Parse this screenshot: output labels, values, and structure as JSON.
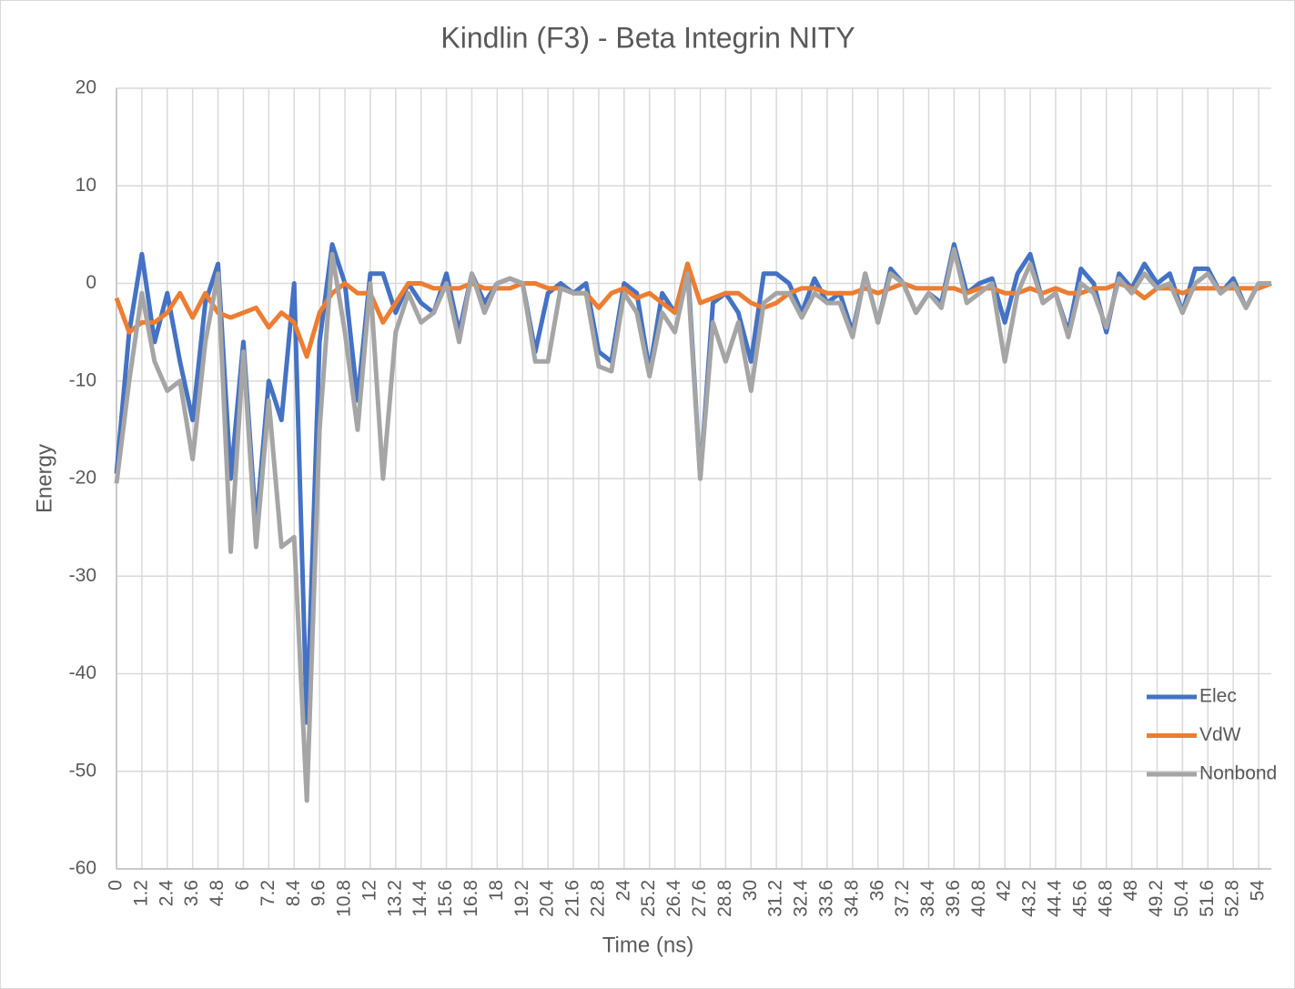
{
  "chart_data": {
    "type": "line",
    "title": "Kindlin (F3)  - Beta Integrin NITY",
    "x_label": "Time (ns)",
    "y_label": "Energy",
    "x": [
      0,
      0.6,
      1.2,
      1.8,
      2.4,
      3,
      3.6,
      4.2,
      4.8,
      5.4,
      6,
      6.6,
      7.2,
      7.8,
      8.4,
      9,
      9.6,
      10.2,
      10.8,
      11.4,
      12,
      12.6,
      13.2,
      13.8,
      14.4,
      15,
      15.6,
      16.2,
      16.8,
      17.4,
      18,
      18.6,
      19.2,
      19.8,
      20.4,
      21,
      21.6,
      22.2,
      22.8,
      23.4,
      24,
      24.6,
      25.2,
      25.8,
      26.4,
      27,
      27.6,
      28.2,
      28.8,
      29.4,
      30,
      30.6,
      31.2,
      31.8,
      32.4,
      33,
      33.6,
      34.2,
      34.8,
      35.4,
      36,
      36.6,
      37.2,
      37.8,
      38.4,
      39,
      39.6,
      40.2,
      40.8,
      41.4,
      42,
      42.6,
      43.2,
      43.8,
      44.4,
      45,
      45.6,
      46.2,
      46.8,
      47.4,
      48,
      48.6,
      49.2,
      49.8,
      50.4,
      51,
      51.6,
      52.2,
      52.8,
      53.4,
      54,
      54.6
    ],
    "series": [
      {
        "name": "Elec",
        "color": "#4472c4",
        "values": [
          -19.5,
          -5,
          3,
          -6,
          -1,
          -8,
          -14,
          -2,
          2,
          -20,
          -6,
          -25,
          -10,
          -14,
          0,
          -45,
          -6,
          4,
          0,
          -12,
          1,
          1,
          -3,
          0,
          -2,
          -3,
          1,
          -5,
          1,
          -2,
          0,
          0.5,
          0,
          -7,
          -1,
          0,
          -1,
          0,
          -7,
          -8,
          0,
          -1,
          -9,
          -1,
          -3,
          2,
          -20,
          -2,
          -1,
          -3,
          -8,
          1,
          1,
          0,
          -3,
          0.5,
          -2,
          -1,
          -5,
          1,
          -4,
          1.5,
          0,
          -3,
          -1,
          -2,
          4,
          -1,
          0,
          0.5,
          -4,
          1,
          3,
          -2,
          -1,
          -5,
          1.5,
          0,
          -5,
          1,
          -0.5,
          2,
          0,
          1,
          -3,
          1.5,
          1.5,
          -1,
          0.5,
          -2.5,
          0,
          0
        ]
      },
      {
        "name": "VdW",
        "color": "#ed7d31",
        "values": [
          -1.5,
          -5,
          -4,
          -4,
          -3,
          -1,
          -3.5,
          -1,
          -3,
          -3.5,
          -3,
          -2.5,
          -4.5,
          -3,
          -4,
          -7.5,
          -3,
          -1,
          0,
          -1,
          -1,
          -4,
          -2,
          0,
          0,
          -0.5,
          -0.5,
          -0.5,
          0,
          -0.5,
          -0.5,
          -0.5,
          0,
          0,
          -0.5,
          -0.5,
          -1,
          -1,
          -2.5,
          -1,
          -0.5,
          -1.5,
          -1,
          -2,
          -3,
          2,
          -2,
          -1.5,
          -1,
          -1,
          -2,
          -2.5,
          -2,
          -1,
          -0.5,
          -0.5,
          -1,
          -1,
          -1,
          -0.5,
          -1,
          -0.5,
          0,
          -0.5,
          -0.5,
          -0.5,
          -0.5,
          -1,
          -0.5,
          -0.5,
          -1,
          -1,
          -0.5,
          -1,
          -0.5,
          -1,
          -1,
          -0.5,
          -0.5,
          0,
          -0.5,
          -1.5,
          -0.5,
          -0.5,
          -1,
          -0.5,
          -0.5,
          -0.5,
          -0.5,
          -0.5,
          -0.5,
          0
        ]
      },
      {
        "name": "Nonbond",
        "color": "#a5a5a5",
        "values": [
          -20.5,
          -10,
          -1,
          -8,
          -11,
          -10,
          -18,
          -6,
          1,
          -27.5,
          -7,
          -27,
          -12,
          -27,
          -26,
          -53,
          -15,
          3,
          -5,
          -15,
          0,
          -20,
          -5,
          -1,
          -4,
          -3,
          0,
          -6,
          1,
          -3,
          0,
          0.5,
          0,
          -8,
          -8,
          -0.5,
          -1,
          -1,
          -8.5,
          -9,
          -1,
          -3,
          -9.5,
          -3,
          -5,
          1,
          -20,
          -4,
          -8,
          -4,
          -11,
          -2,
          -1,
          -1,
          -3.5,
          -1,
          -2,
          -2,
          -5.5,
          1,
          -4,
          1,
          0,
          -3,
          -1,
          -2.5,
          3.5,
          -2,
          -1,
          0,
          -8,
          -1,
          2,
          -2,
          -1,
          -5.5,
          0,
          -1,
          -4.5,
          0.5,
          -1,
          1,
          -0.5,
          0,
          -3,
          0,
          1,
          -1,
          0,
          -2.5,
          0,
          0
        ]
      }
    ],
    "xlim": [
      0,
      54.6
    ],
    "ylim": [
      -60,
      20
    ],
    "xticks": [
      0,
      1.2,
      2.4,
      3.6,
      4.8,
      6,
      7.2,
      8.4,
      9.6,
      10.8,
      12,
      13.2,
      14.4,
      15.6,
      16.8,
      18,
      19.2,
      20.4,
      21.6,
      22.8,
      24,
      25.2,
      26.4,
      27.6,
      28.8,
      30,
      31.2,
      32.4,
      33.6,
      34.8,
      36,
      37.2,
      38.4,
      39.6,
      40.8,
      42,
      43.2,
      44.4,
      45.6,
      46.8,
      48,
      49.2,
      50.4,
      51.6,
      52.8,
      54
    ],
    "yticks": [
      -60,
      -50,
      -40,
      -30,
      -20,
      -10,
      0,
      10,
      20
    ],
    "grid": true,
    "legend": "right"
  }
}
